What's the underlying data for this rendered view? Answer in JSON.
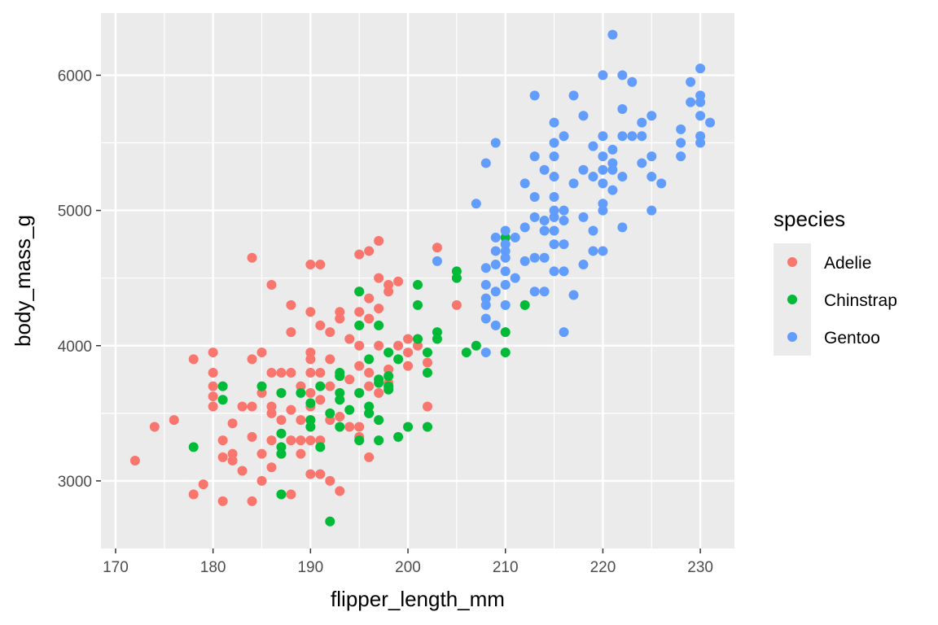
{
  "chart_data": {
    "type": "scatter",
    "title": "",
    "xlabel": "flipper_length_mm",
    "ylabel": "body_mass_g",
    "xlim": [
      168.5,
      233.5
    ],
    "ylim": [
      2500,
      6460
    ],
    "xticks": [
      170,
      180,
      190,
      200,
      210,
      220,
      230
    ],
    "yticks": [
      3000,
      4000,
      5000,
      6000
    ],
    "grid": true,
    "legend": {
      "title": "species",
      "position": "right"
    },
    "colors": {
      "Adelie": "#F8766D",
      "Chinstrap": "#00BA38",
      "Gentoo": "#619CFF",
      "panel": "#EBEBEB",
      "grid": "#FFFFFF"
    },
    "series": [
      {
        "name": "Adelie",
        "points": [
          [
            172,
            3150
          ],
          [
            174,
            3400
          ],
          [
            176,
            3450
          ],
          [
            178,
            3900
          ],
          [
            178,
            2900
          ],
          [
            179,
            2975
          ],
          [
            180,
            3950
          ],
          [
            180,
            3800
          ],
          [
            180,
            3700
          ],
          [
            180,
            3625
          ],
          [
            180,
            3550
          ],
          [
            181,
            3300
          ],
          [
            181,
            3175
          ],
          [
            181,
            2850
          ],
          [
            182,
            3425
          ],
          [
            182,
            3200
          ],
          [
            182,
            3150
          ],
          [
            183,
            3550
          ],
          [
            183,
            3075
          ],
          [
            184,
            4650
          ],
          [
            184,
            3900
          ],
          [
            184,
            3550
          ],
          [
            184,
            3325
          ],
          [
            184,
            2850
          ],
          [
            185,
            3950
          ],
          [
            185,
            3650
          ],
          [
            185,
            3200
          ],
          [
            185,
            3000
          ],
          [
            186,
            4450
          ],
          [
            186,
            3800
          ],
          [
            186,
            3550
          ],
          [
            186,
            3500
          ],
          [
            186,
            3300
          ],
          [
            186,
            3100
          ],
          [
            187,
            3800
          ],
          [
            187,
            3650
          ],
          [
            187,
            3450
          ],
          [
            187,
            3200
          ],
          [
            188,
            4300
          ],
          [
            188,
            4100
          ],
          [
            188,
            3800
          ],
          [
            188,
            3525
          ],
          [
            188,
            3300
          ],
          [
            188,
            2900
          ],
          [
            189,
            3700
          ],
          [
            189,
            3450
          ],
          [
            189,
            3300
          ],
          [
            189,
            3200
          ],
          [
            190,
            4600
          ],
          [
            190,
            4250
          ],
          [
            190,
            3950
          ],
          [
            190,
            3900
          ],
          [
            190,
            3800
          ],
          [
            190,
            3650
          ],
          [
            190,
            3550
          ],
          [
            190,
            3450
          ],
          [
            190,
            3300
          ],
          [
            190,
            3050
          ],
          [
            191,
            4600
          ],
          [
            191,
            4150
          ],
          [
            191,
            3800
          ],
          [
            191,
            3600
          ],
          [
            191,
            3300
          ],
          [
            191,
            3050
          ],
          [
            192,
            4100
          ],
          [
            192,
            3900
          ],
          [
            192,
            3700
          ],
          [
            192,
            3450
          ],
          [
            192,
            3000
          ],
          [
            193,
            4250
          ],
          [
            193,
            4200
          ],
          [
            193,
            3775
          ],
          [
            193,
            3475
          ],
          [
            193,
            2925
          ],
          [
            194,
            4050
          ],
          [
            194,
            3750
          ],
          [
            194,
            3400
          ],
          [
            195,
            4675
          ],
          [
            195,
            4400
          ],
          [
            195,
            4250
          ],
          [
            195,
            4000
          ],
          [
            195,
            3850
          ],
          [
            195,
            3650
          ],
          [
            195,
            3400
          ],
          [
            195,
            3325
          ],
          [
            196,
            4700
          ],
          [
            196,
            4350
          ],
          [
            196,
            4200
          ],
          [
            196,
            3800
          ],
          [
            196,
            3700
          ],
          [
            196,
            3500
          ],
          [
            196,
            3175
          ],
          [
            197,
            4775
          ],
          [
            197,
            4500
          ],
          [
            197,
            4275
          ],
          [
            197,
            4000
          ],
          [
            197,
            3650
          ],
          [
            198,
            4450
          ],
          [
            198,
            4400
          ],
          [
            198,
            3825
          ],
          [
            198,
            3725
          ],
          [
            199,
            4475
          ],
          [
            199,
            4000
          ],
          [
            200,
            4050
          ],
          [
            200,
            3950
          ],
          [
            200,
            3850
          ],
          [
            201,
            4000
          ],
          [
            202,
            3875
          ],
          [
            202,
            3550
          ],
          [
            203,
            4725
          ],
          [
            205,
            4300
          ]
        ]
      },
      {
        "name": "Chinstrap",
        "points": [
          [
            178,
            3250
          ],
          [
            181,
            3700
          ],
          [
            181,
            3600
          ],
          [
            185,
            3700
          ],
          [
            187,
            3650
          ],
          [
            187,
            3350
          ],
          [
            187,
            3250
          ],
          [
            187,
            3200
          ],
          [
            187,
            2900
          ],
          [
            189,
            3650
          ],
          [
            190,
            3575
          ],
          [
            190,
            3450
          ],
          [
            190,
            3400
          ],
          [
            191,
            3700
          ],
          [
            191,
            3250
          ],
          [
            192,
            3500
          ],
          [
            192,
            2700
          ],
          [
            193,
            3800
          ],
          [
            193,
            3775
          ],
          [
            193,
            3650
          ],
          [
            193,
            3600
          ],
          [
            193,
            3400
          ],
          [
            194,
            3525
          ],
          [
            195,
            4400
          ],
          [
            195,
            4150
          ],
          [
            195,
            3650
          ],
          [
            195,
            3300
          ],
          [
            196,
            3900
          ],
          [
            196,
            3550
          ],
          [
            196,
            3500
          ],
          [
            197,
            4150
          ],
          [
            197,
            3750
          ],
          [
            197,
            3725
          ],
          [
            197,
            3450
          ],
          [
            197,
            3300
          ],
          [
            198,
            3950
          ],
          [
            198,
            3775
          ],
          [
            198,
            3700
          ],
          [
            198,
            3675
          ],
          [
            199,
            3900
          ],
          [
            199,
            3325
          ],
          [
            200,
            3400
          ],
          [
            201,
            4450
          ],
          [
            201,
            4300
          ],
          [
            201,
            4050
          ],
          [
            202,
            3950
          ],
          [
            202,
            3800
          ],
          [
            202,
            3400
          ],
          [
            203,
            4100
          ],
          [
            203,
            4050
          ],
          [
            205,
            4550
          ],
          [
            205,
            4500
          ],
          [
            206,
            3950
          ],
          [
            207,
            4000
          ],
          [
            210,
            4800
          ],
          [
            210,
            4100
          ],
          [
            210,
            3950
          ],
          [
            212,
            4300
          ]
        ]
      },
      {
        "name": "Gentoo",
        "points": [
          [
            203,
            4625
          ],
          [
            207,
            5050
          ],
          [
            208,
            5350
          ],
          [
            208,
            4575
          ],
          [
            208,
            4450
          ],
          [
            208,
            4350
          ],
          [
            208,
            4300
          ],
          [
            208,
            4200
          ],
          [
            208,
            3950
          ],
          [
            209,
            5500
          ],
          [
            209,
            4800
          ],
          [
            209,
            4700
          ],
          [
            209,
            4600
          ],
          [
            209,
            4400
          ],
          [
            209,
            4150
          ],
          [
            210,
            4850
          ],
          [
            210,
            4750
          ],
          [
            210,
            4700
          ],
          [
            210,
            4650
          ],
          [
            210,
            4550
          ],
          [
            210,
            4450
          ],
          [
            210,
            4300
          ],
          [
            211,
            4800
          ],
          [
            211,
            4500
          ],
          [
            212,
            5200
          ],
          [
            212,
            4875
          ],
          [
            212,
            4625
          ],
          [
            213,
            5850
          ],
          [
            213,
            5400
          ],
          [
            213,
            5100
          ],
          [
            213,
            4950
          ],
          [
            213,
            4650
          ],
          [
            213,
            4400
          ],
          [
            214,
            5300
          ],
          [
            214,
            4925
          ],
          [
            214,
            4850
          ],
          [
            214,
            4650
          ],
          [
            214,
            4400
          ],
          [
            215,
            5650
          ],
          [
            215,
            5500
          ],
          [
            215,
            5400
          ],
          [
            215,
            5250
          ],
          [
            215,
            5100
          ],
          [
            215,
            5000
          ],
          [
            215,
            4950
          ],
          [
            215,
            4850
          ],
          [
            215,
            4750
          ],
          [
            215,
            4550
          ],
          [
            216,
            5550
          ],
          [
            216,
            5000
          ],
          [
            216,
            4925
          ],
          [
            216,
            4750
          ],
          [
            216,
            4550
          ],
          [
            216,
            4100
          ],
          [
            217,
            5850
          ],
          [
            217,
            5200
          ],
          [
            217,
            4375
          ],
          [
            218,
            5700
          ],
          [
            218,
            5300
          ],
          [
            218,
            4950
          ],
          [
            218,
            4600
          ],
          [
            219,
            5475
          ],
          [
            219,
            5250
          ],
          [
            219,
            4850
          ],
          [
            219,
            4700
          ],
          [
            220,
            6000
          ],
          [
            220,
            5550
          ],
          [
            220,
            5400
          ],
          [
            220,
            5300
          ],
          [
            220,
            5200
          ],
          [
            220,
            5050
          ],
          [
            220,
            5000
          ],
          [
            220,
            4700
          ],
          [
            221,
            6300
          ],
          [
            221,
            5450
          ],
          [
            221,
            5350
          ],
          [
            221,
            5300
          ],
          [
            221,
            5150
          ],
          [
            222,
            6000
          ],
          [
            222,
            5750
          ],
          [
            222,
            5550
          ],
          [
            222,
            5250
          ],
          [
            222,
            4875
          ],
          [
            223,
            5950
          ],
          [
            223,
            5550
          ],
          [
            224,
            5650
          ],
          [
            224,
            5350
          ],
          [
            224,
            5550
          ],
          [
            225,
            5700
          ],
          [
            225,
            5400
          ],
          [
            225,
            5250
          ],
          [
            225,
            5000
          ],
          [
            226,
            5200
          ],
          [
            228,
            5600
          ],
          [
            228,
            5500
          ],
          [
            228,
            5400
          ],
          [
            229,
            5950
          ],
          [
            229,
            5800
          ],
          [
            230,
            6050
          ],
          [
            230,
            5850
          ],
          [
            230,
            5800
          ],
          [
            230,
            5700
          ],
          [
            230,
            5550
          ],
          [
            230,
            5500
          ],
          [
            231,
            5650
          ]
        ]
      }
    ]
  }
}
